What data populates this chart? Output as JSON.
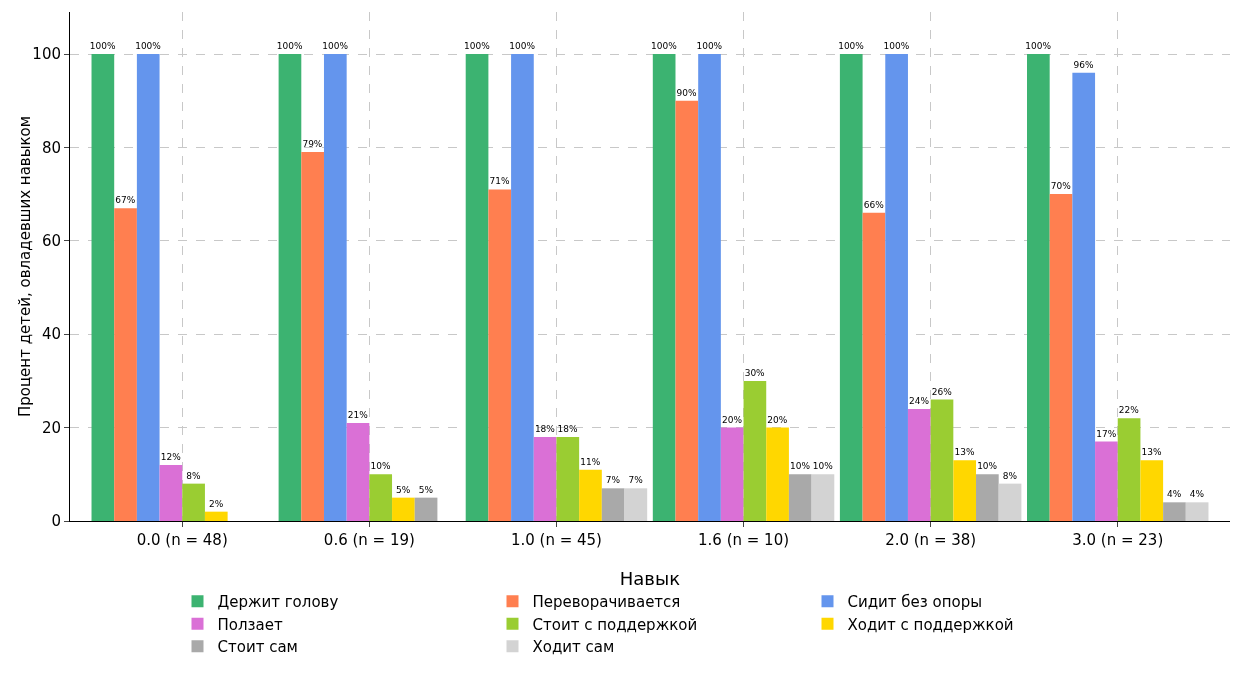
{
  "chart_data": {
    "type": "bar",
    "ylabel": "Процент детей, овладевших навыком",
    "legend_title": "Навык",
    "categories": [
      "0.0 (n = 48)",
      "0.6 (n = 19)",
      "1.0 (n = 45)",
      "1.6 (n = 10)",
      "2.0 (n = 38)",
      "3.0 (n = 23)"
    ],
    "series": [
      {
        "name": "Держит голову",
        "color": "#3cb371",
        "values": [
          100,
          100,
          100,
          100,
          100,
          100
        ],
        "value_labels": [
          "100%",
          "100%",
          "100%",
          "100%",
          "100%",
          "100%"
        ]
      },
      {
        "name": "Переворачивается",
        "color": "#ff7f50",
        "values": [
          67,
          79,
          71,
          90,
          66,
          70
        ],
        "value_labels": [
          "67%",
          "79%",
          "71%",
          "90%",
          "66%",
          "70%"
        ]
      },
      {
        "name": "Сидит без опоры",
        "color": "#6495ed",
        "values": [
          100,
          100,
          100,
          100,
          100,
          96
        ],
        "value_labels": [
          "100%",
          "100%",
          "100%",
          "100%",
          "100%",
          "96%"
        ]
      },
      {
        "name": "Ползает",
        "color": "#da70d6",
        "values": [
          12,
          21,
          18,
          20,
          24,
          17
        ],
        "value_labels": [
          "12%",
          "21%",
          "18%",
          "20%",
          "24%",
          "17%"
        ]
      },
      {
        "name": "Стоит с поддержкой",
        "color": "#9acd32",
        "values": [
          8,
          10,
          18,
          30,
          26,
          22
        ],
        "value_labels": [
          "8%",
          "10%",
          "18%",
          "30%",
          "26%",
          "22%"
        ]
      },
      {
        "name": "Ходит с поддержкой",
        "color": "#ffd700",
        "values": [
          2,
          5,
          11,
          20,
          13,
          13
        ],
        "value_labels": [
          "2%",
          "5%",
          "11%",
          "20%",
          "13%",
          "13%"
        ]
      },
      {
        "name": "Стоит сам",
        "color": "#a9a9a9",
        "values": [
          0,
          5,
          7,
          10,
          10,
          4
        ],
        "value_labels": [
          null,
          "5%",
          "7%",
          "10%",
          "10%",
          "4%"
        ]
      },
      {
        "name": "Ходит сам",
        "color": "#d3d3d3",
        "values": [
          0,
          0,
          7,
          10,
          8,
          4
        ],
        "value_labels": [
          null,
          null,
          "7%",
          "10%",
          "8%",
          "4%"
        ]
      }
    ],
    "ylim": [
      0,
      109
    ],
    "yticks": [
      0,
      20,
      40,
      60,
      80,
      100
    ],
    "grid": true,
    "legend": "bottom"
  }
}
